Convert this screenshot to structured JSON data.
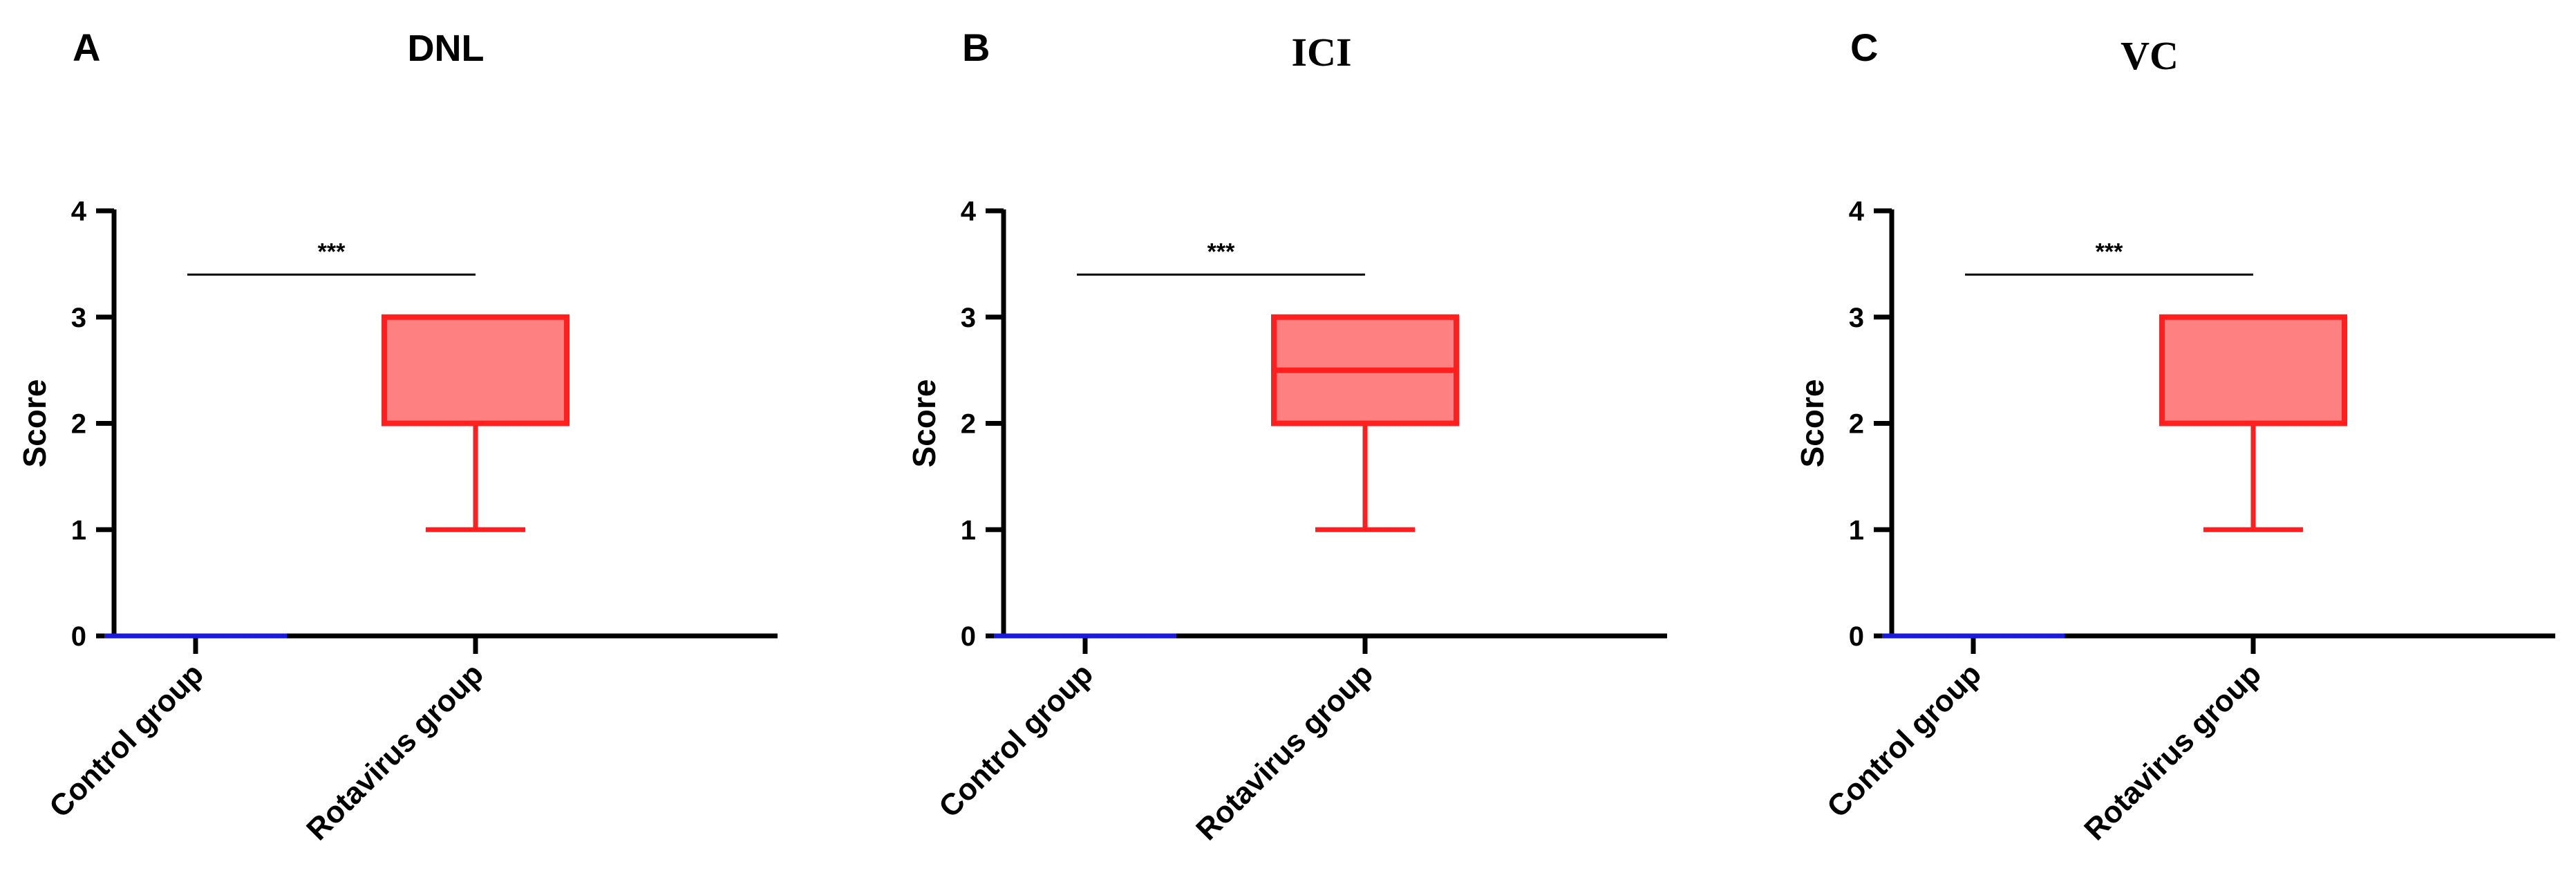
{
  "chart_data": [
    {
      "type": "box",
      "panel_letter": "A",
      "title": "DNL",
      "title_font": "sans",
      "ylabel": "Score",
      "xlabel": "",
      "ylim": [
        0,
        4
      ],
      "yticks": [
        "0",
        "1",
        "2",
        "3",
        "4"
      ],
      "categories": [
        "Control group",
        "Rotavirus group"
      ],
      "boxes": [
        {
          "name": "Control group",
          "min": 0,
          "q1": 0,
          "median": 0,
          "q3": 0,
          "max": 0,
          "color": "#1a1adb",
          "fill": "#1a1adb"
        },
        {
          "name": "Rotavirus group",
          "min": 1,
          "q1": 2,
          "median": 2,
          "q3": 3,
          "max": 3,
          "color": "#ff1f1f",
          "fill": "#ff8080"
        }
      ],
      "significance": {
        "label": "***",
        "from": "Control group",
        "to": "Rotavirus group",
        "y": 3.4
      }
    },
    {
      "type": "box",
      "panel_letter": "B",
      "title": "ICI",
      "title_font": "serif",
      "ylabel": "Score",
      "xlabel": "",
      "ylim": [
        0,
        4
      ],
      "yticks": [
        "0",
        "1",
        "2",
        "3",
        "4"
      ],
      "categories": [
        "Control group",
        "Rotavirus group"
      ],
      "boxes": [
        {
          "name": "Control group",
          "min": 0,
          "q1": 0,
          "median": 0,
          "q3": 0,
          "max": 0,
          "color": "#1a1adb",
          "fill": "#1a1adb"
        },
        {
          "name": "Rotavirus group",
          "min": 1,
          "q1": 2,
          "median": 2.5,
          "q3": 3,
          "max": 3,
          "color": "#ff1f1f",
          "fill": "#ff8080"
        }
      ],
      "significance": {
        "label": "***",
        "from": "Control group",
        "to": "Rotavirus group",
        "y": 3.4
      }
    },
    {
      "type": "box",
      "panel_letter": "C",
      "title": "VC",
      "title_font": "serif",
      "ylabel": "Score",
      "xlabel": "",
      "ylim": [
        0,
        4
      ],
      "yticks": [
        "0",
        "1",
        "2",
        "3",
        "4"
      ],
      "categories": [
        "Control group",
        "Rotavirus group"
      ],
      "boxes": [
        {
          "name": "Control group",
          "min": 0,
          "q1": 0,
          "median": 0,
          "q3": 0,
          "max": 0,
          "color": "#1a1adb",
          "fill": "#1a1adb"
        },
        {
          "name": "Rotavirus group",
          "min": 1,
          "q1": 2,
          "median": 2,
          "q3": 3,
          "max": 3,
          "color": "#ff1f1f",
          "fill": "#ff8080"
        }
      ],
      "significance": {
        "label": "***",
        "from": "Control group",
        "to": "Rotavirus group",
        "y": 3.4
      }
    }
  ]
}
